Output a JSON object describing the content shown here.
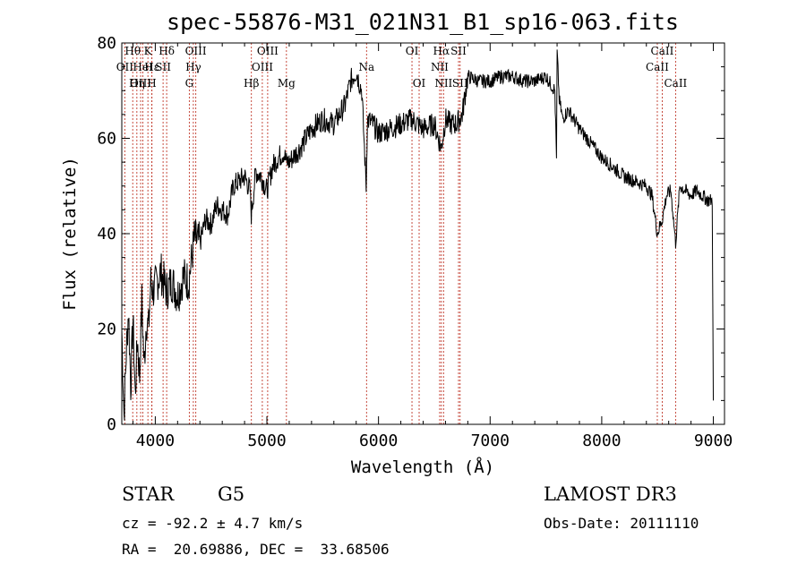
{
  "chart_data": {
    "type": "line",
    "title": "spec-55876-M31_021N31_B1_sp16-063.fits",
    "xlabel": "Wavelength (Å)",
    "ylabel": "Flux (relative)",
    "xlim": [
      3700,
      9100
    ],
    "ylim": [
      0,
      80
    ],
    "x_ticks": [
      4000,
      5000,
      6000,
      7000,
      8000,
      9000
    ],
    "y_ticks": [
      0,
      20,
      40,
      60,
      80
    ],
    "x_tick_labels": [
      "4000",
      "5000",
      "6000",
      "7000",
      "8000",
      "9000"
    ],
    "y_tick_labels": [
      "0",
      "20",
      "40",
      "60",
      "80"
    ],
    "series": [
      {
        "name": "flux",
        "x": [
          3700,
          3720,
          3740,
          3760,
          3780,
          3800,
          3820,
          3840,
          3860,
          3880,
          3900,
          3920,
          3940,
          3960,
          3980,
          4000,
          4050,
          4100,
          4150,
          4200,
          4250,
          4300,
          4350,
          4400,
          4450,
          4500,
          4550,
          4600,
          4650,
          4700,
          4750,
          4800,
          4850,
          4860,
          4900,
          4950,
          5000,
          5050,
          5100,
          5150,
          5175,
          5200,
          5300,
          5400,
          5500,
          5600,
          5700,
          5750,
          5800,
          5850,
          5890,
          5900,
          5950,
          6000,
          6100,
          6200,
          6300,
          6400,
          6500,
          6562,
          6600,
          6650,
          6700,
          6750,
          6800,
          6900,
          7000,
          7100,
          7200,
          7300,
          7400,
          7500,
          7580,
          7595,
          7600,
          7620,
          7650,
          7700,
          7800,
          7900,
          8000,
          8100,
          8200,
          8300,
          8400,
          8450,
          8498,
          8542,
          8580,
          8620,
          8662,
          8700,
          8750,
          8800,
          8850,
          8900,
          8950,
          8990,
          9000
        ],
        "values": [
          20,
          2,
          15,
          24,
          8,
          22,
          6,
          18,
          10,
          26,
          12,
          22,
          20,
          30,
          28,
          29,
          32,
          28,
          30,
          27,
          31,
          30,
          39,
          38,
          43,
          42,
          46,
          45,
          44,
          50,
          51,
          52,
          49,
          44,
          53,
          52,
          49,
          54,
          56,
          57,
          55,
          55,
          58,
          62,
          64,
          63,
          67,
          72,
          74,
          70,
          50,
          64,
          63,
          61,
          62,
          63,
          64,
          62,
          63,
          58,
          64,
          63,
          63,
          65,
          73,
          72,
          72,
          73,
          73,
          72,
          72,
          73,
          70,
          55,
          78,
          68,
          64,
          66,
          62,
          59,
          56,
          54,
          52,
          51,
          50,
          48,
          40,
          43,
          48,
          49,
          38,
          50,
          49,
          48,
          49,
          48,
          47,
          47,
          5
        ]
      }
    ],
    "spectral_lines": [
      {
        "name": "Hθ",
        "x": 3798,
        "row": 1
      },
      {
        "name": "OII",
        "x": 3727,
        "row": 2
      },
      {
        "name": "OIII",
        "x": 3869,
        "row": 3
      },
      {
        "name": "K",
        "x": 3934,
        "row": 1
      },
      {
        "name": "Hε",
        "x": 3970,
        "row": 2
      },
      {
        "name": "HeI",
        "x": 3889,
        "row": 2
      },
      {
        "name": "Hη",
        "x": 3835,
        "row": 3
      },
      {
        "name": "H",
        "x": 3969,
        "row": 3
      },
      {
        "name": "SII",
        "x": 4070,
        "row": 2
      },
      {
        "name": "Hδ",
        "x": 4102,
        "row": 1
      },
      {
        "name": "OIII",
        "x": 4363,
        "row": 1
      },
      {
        "name": "Hγ",
        "x": 4341,
        "row": 2
      },
      {
        "name": "G",
        "x": 4305,
        "row": 3
      },
      {
        "name": "OIII",
        "x": 5007,
        "row": 1
      },
      {
        "name": "OIII",
        "x": 4959,
        "row": 2
      },
      {
        "name": "Hβ",
        "x": 4861,
        "row": 3
      },
      {
        "name": "Mg",
        "x": 5175,
        "row": 3
      },
      {
        "name": "Na",
        "x": 5893,
        "row": 2
      },
      {
        "name": "OI",
        "x": 6300,
        "row": 1
      },
      {
        "name": "OI",
        "x": 6364,
        "row": 3
      },
      {
        "name": "Hα",
        "x": 6563,
        "row": 1
      },
      {
        "name": "NII",
        "x": 6548,
        "row": 2
      },
      {
        "name": "NII",
        "x": 6583,
        "row": 3
      },
      {
        "name": "SII",
        "x": 6717,
        "row": 1
      },
      {
        "name": "SII",
        "x": 6731,
        "row": 3
      },
      {
        "name": "CaII",
        "x": 8542,
        "row": 1
      },
      {
        "name": "CaII",
        "x": 8498,
        "row": 2
      },
      {
        "name": "CaII",
        "x": 8662,
        "row": 3
      }
    ]
  },
  "info": {
    "class": "STAR",
    "subclass": "G5",
    "survey": "LAMOST DR3",
    "cz": "cz = -92.2 ± 4.7 km/s",
    "obs_date": "Obs-Date: 20111110",
    "coords": "RA =  20.69886, DEC =  33.68506"
  }
}
